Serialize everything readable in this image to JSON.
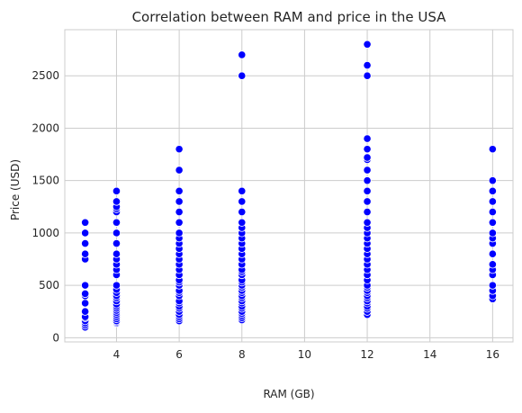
{
  "chart_data": {
    "type": "scatter",
    "title": "Correlation between RAM and price in the USA",
    "xlabel": "RAM (GB)",
    "ylabel": "Price (USD)",
    "xlim": [
      2.35,
      16.65
    ],
    "ylim": [
      -40,
      2940
    ],
    "xticks": [
      4,
      6,
      8,
      10,
      12,
      14,
      16
    ],
    "yticks": [
      0,
      500,
      1000,
      1500,
      2000,
      2500
    ],
    "grid": true,
    "marker_color": "#0000ff",
    "marker_edge_color": "#ffffff",
    "grid_color": "#cccccc",
    "frame_color": "#cccccc",
    "series": [
      {
        "points": [
          [
            3,
            100
          ],
          [
            3,
            120
          ],
          [
            3,
            140
          ],
          [
            3,
            160
          ],
          [
            3,
            190
          ],
          [
            3,
            200
          ],
          [
            3,
            250
          ],
          [
            3,
            330
          ],
          [
            3,
            400
          ],
          [
            3,
            420
          ],
          [
            3,
            500
          ],
          [
            3,
            750
          ],
          [
            3,
            800
          ],
          [
            3,
            900
          ],
          [
            3,
            1000
          ],
          [
            3,
            1100
          ],
          [
            4,
            140
          ],
          [
            4,
            150
          ],
          [
            4,
            160
          ],
          [
            4,
            180
          ],
          [
            4,
            200
          ],
          [
            4,
            220
          ],
          [
            4,
            240
          ],
          [
            4,
            260
          ],
          [
            4,
            280
          ],
          [
            4,
            300
          ],
          [
            4,
            320
          ],
          [
            4,
            350
          ],
          [
            4,
            380
          ],
          [
            4,
            400
          ],
          [
            4,
            430
          ],
          [
            4,
            460
          ],
          [
            4,
            500
          ],
          [
            4,
            600
          ],
          [
            4,
            650
          ],
          [
            4,
            700
          ],
          [
            4,
            750
          ],
          [
            4,
            800
          ],
          [
            4,
            900
          ],
          [
            4,
            1000
          ],
          [
            4,
            1100
          ],
          [
            4,
            1200
          ],
          [
            4,
            1230
          ],
          [
            4,
            1250
          ],
          [
            4,
            1300
          ],
          [
            4,
            1400
          ],
          [
            6,
            160
          ],
          [
            6,
            180
          ],
          [
            6,
            200
          ],
          [
            6,
            220
          ],
          [
            6,
            250
          ],
          [
            6,
            280
          ],
          [
            6,
            300
          ],
          [
            6,
            330
          ],
          [
            6,
            350
          ],
          [
            6,
            400
          ],
          [
            6,
            430
          ],
          [
            6,
            450
          ],
          [
            6,
            500
          ],
          [
            6,
            530
          ],
          [
            6,
            550
          ],
          [
            6,
            600
          ],
          [
            6,
            650
          ],
          [
            6,
            700
          ],
          [
            6,
            750
          ],
          [
            6,
            800
          ],
          [
            6,
            850
          ],
          [
            6,
            900
          ],
          [
            6,
            950
          ],
          [
            6,
            1000
          ],
          [
            6,
            1100
          ],
          [
            6,
            1200
          ],
          [
            6,
            1300
          ],
          [
            6,
            1400
          ],
          [
            6,
            1600
          ],
          [
            6,
            1800
          ],
          [
            8,
            170
          ],
          [
            8,
            190
          ],
          [
            8,
            210
          ],
          [
            8,
            230
          ],
          [
            8,
            250
          ],
          [
            8,
            280
          ],
          [
            8,
            300
          ],
          [
            8,
            330
          ],
          [
            8,
            350
          ],
          [
            8,
            380
          ],
          [
            8,
            400
          ],
          [
            8,
            430
          ],
          [
            8,
            450
          ],
          [
            8,
            480
          ],
          [
            8,
            500
          ],
          [
            8,
            530
          ],
          [
            8,
            550
          ],
          [
            8,
            600
          ],
          [
            8,
            630
          ],
          [
            8,
            650
          ],
          [
            8,
            700
          ],
          [
            8,
            750
          ],
          [
            8,
            800
          ],
          [
            8,
            850
          ],
          [
            8,
            900
          ],
          [
            8,
            950
          ],
          [
            8,
            1000
          ],
          [
            8,
            1050
          ],
          [
            8,
            1100
          ],
          [
            8,
            1200
          ],
          [
            8,
            1300
          ],
          [
            8,
            1400
          ],
          [
            8,
            2500
          ],
          [
            8,
            2700
          ],
          [
            12,
            220
          ],
          [
            12,
            250
          ],
          [
            12,
            280
          ],
          [
            12,
            300
          ],
          [
            12,
            330
          ],
          [
            12,
            350
          ],
          [
            12,
            380
          ],
          [
            12,
            400
          ],
          [
            12,
            430
          ],
          [
            12,
            450
          ],
          [
            12,
            480
          ],
          [
            12,
            500
          ],
          [
            12,
            550
          ],
          [
            12,
            600
          ],
          [
            12,
            650
          ],
          [
            12,
            700
          ],
          [
            12,
            750
          ],
          [
            12,
            800
          ],
          [
            12,
            850
          ],
          [
            12,
            900
          ],
          [
            12,
            950
          ],
          [
            12,
            1000
          ],
          [
            12,
            1050
          ],
          [
            12,
            1100
          ],
          [
            12,
            1200
          ],
          [
            12,
            1300
          ],
          [
            12,
            1400
          ],
          [
            12,
            1500
          ],
          [
            12,
            1600
          ],
          [
            12,
            1700
          ],
          [
            12,
            1720
          ],
          [
            12,
            1800
          ],
          [
            12,
            1900
          ],
          [
            12,
            2500
          ],
          [
            12,
            2600
          ],
          [
            12,
            2800
          ],
          [
            16,
            370
          ],
          [
            16,
            400
          ],
          [
            16,
            450
          ],
          [
            16,
            500
          ],
          [
            16,
            600
          ],
          [
            16,
            650
          ],
          [
            16,
            700
          ],
          [
            16,
            800
          ],
          [
            16,
            900
          ],
          [
            16,
            950
          ],
          [
            16,
            1000
          ],
          [
            16,
            1100
          ],
          [
            16,
            1200
          ],
          [
            16,
            1300
          ],
          [
            16,
            1400
          ],
          [
            16,
            1500
          ],
          [
            16,
            1800
          ]
        ]
      }
    ]
  }
}
